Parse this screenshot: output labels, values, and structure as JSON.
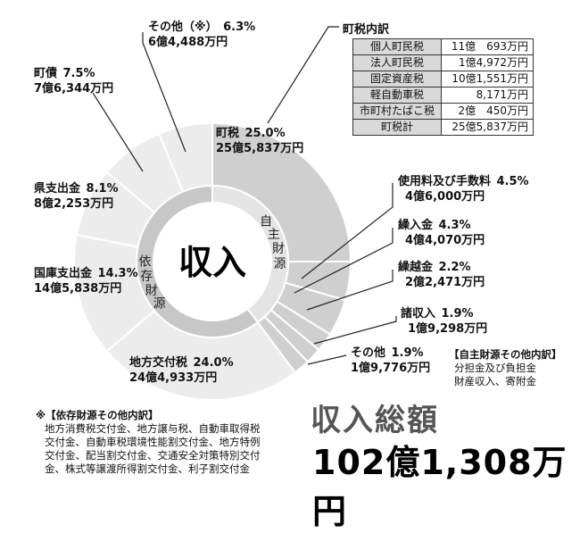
{
  "chart_data": {
    "type": "pie",
    "variant": "donut-with-inner-ring",
    "center_label": "収入",
    "slices": [
      {
        "label": "町税",
        "percent": "25.0%",
        "amount": "25億5,837万円",
        "value": 25.0,
        "group": "自主財源"
      },
      {
        "label": "使用料及び手数料",
        "percent": "4.5%",
        "amount": "4億6,000万円",
        "value": 4.5,
        "group": "自主財源"
      },
      {
        "label": "繰入金",
        "percent": "4.3%",
        "amount": "4億4,070万円",
        "value": 4.3,
        "group": "自主財源"
      },
      {
        "label": "繰越金",
        "percent": "2.2%",
        "amount": "2億2,471万円",
        "value": 2.2,
        "group": "自主財源"
      },
      {
        "label": "諸収入",
        "percent": "1.9%",
        "amount": "1億9,298万円",
        "value": 1.9,
        "group": "自主財源"
      },
      {
        "label": "その他",
        "percent": "1.9%",
        "amount": "1億9,776万円",
        "value": 1.9,
        "group": "自主財源"
      },
      {
        "label": "地方交付税",
        "percent": "24.0%",
        "amount": "24億4,933万円",
        "value": 24.0,
        "group": "依存財源"
      },
      {
        "label": "国庫支出金",
        "percent": "14.3%",
        "amount": "14億5,838万円",
        "value": 14.3,
        "group": "依存財源"
      },
      {
        "label": "県支出金",
        "percent": "8.1%",
        "amount": "8億2,253万円",
        "value": 8.1,
        "group": "依存財源"
      },
      {
        "label": "町債",
        "percent": "7.5%",
        "amount": "7億6,344万円",
        "value": 7.5,
        "group": "依存財源"
      },
      {
        "label": "その他（※）",
        "percent": "6.3%",
        "amount": "6億4,488万円",
        "value": 6.3,
        "group": "依存財源"
      }
    ],
    "groups": [
      {
        "label": "自主財源",
        "value": 39.8
      },
      {
        "label": "依存財源",
        "value": 60.2
      }
    ],
    "colors": {
      "jishu": "#cfcfcf",
      "izon": "#ececec",
      "ring_jishu": "#e4e4e4",
      "ring_izon": "#c7c7c7",
      "border": "#ffffff"
    }
  },
  "tax_table": {
    "title": "町税内訳",
    "rows": [
      {
        "name": "個人町民税",
        "amount": "11億　693万円"
      },
      {
        "name": "法人町民税",
        "amount": "1億4,972万円"
      },
      {
        "name": "固定資産税",
        "amount": "10億1,551万円"
      },
      {
        "name": "軽自動車税",
        "amount": "8,171万円"
      },
      {
        "name": "市町村たばこ税",
        "amount": "2億　450万円"
      },
      {
        "name": "町税計",
        "amount": "25億5,837万円"
      }
    ]
  },
  "jishu_note": {
    "title": "【自主財源その他内訳】",
    "lines": [
      "分担金及び負担金",
      "財産収入、寄附金"
    ]
  },
  "izon_note": {
    "title": "※【依存財源その他内訳】",
    "lines": [
      "地方消費税交付金、地方譲与税、自動車取得税",
      "交付金、自動車税環境性能割交付金、地方特例",
      "交付金、配当割交付金、交通安全対策特別交付",
      "金、株式等譲渡所得割交付金、利子割交付金"
    ]
  },
  "total": {
    "title": "収入総額",
    "amount": "102億1,308万円"
  }
}
